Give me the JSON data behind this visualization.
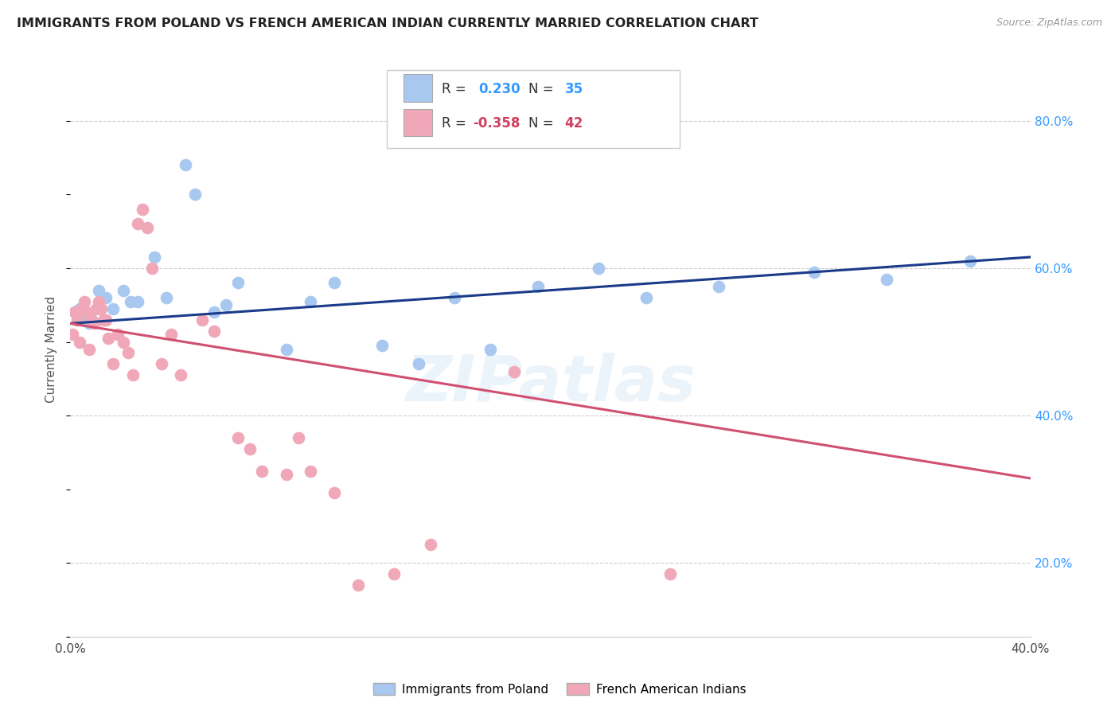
{
  "title": "IMMIGRANTS FROM POLAND VS FRENCH AMERICAN INDIAN CURRENTLY MARRIED CORRELATION CHART",
  "source": "Source: ZipAtlas.com",
  "ylabel": "Currently Married",
  "xlim": [
    0.0,
    0.4
  ],
  "ylim": [
    0.1,
    0.88
  ],
  "xticks": [
    0.0,
    0.05,
    0.1,
    0.15,
    0.2,
    0.25,
    0.3,
    0.35,
    0.4
  ],
  "xtick_labels": [
    "0.0%",
    "",
    "",
    "",
    "",
    "",
    "",
    "",
    "40.0%"
  ],
  "yticks": [
    0.2,
    0.4,
    0.6,
    0.8
  ],
  "ytick_labels": [
    "20.0%",
    "40.0%",
    "60.0%",
    "80.0%"
  ],
  "legend_label_blue": "Immigrants from Poland",
  "legend_label_pink": "French American Indians",
  "R_blue": 0.23,
  "N_blue": 35,
  "R_pink": -0.358,
  "N_pink": 42,
  "blue_color": "#a8c8f0",
  "pink_color": "#f0a8b8",
  "line_blue": "#1a3a8a",
  "line_pink": "#d05070",
  "blue_x": [
    0.002,
    0.003,
    0.004,
    0.005,
    0.006,
    0.007,
    0.008,
    0.009,
    0.012,
    0.015,
    0.018,
    0.022,
    0.025,
    0.028,
    0.035,
    0.04,
    0.048,
    0.052,
    0.06,
    0.065,
    0.07,
    0.09,
    0.1,
    0.11,
    0.13,
    0.145,
    0.16,
    0.175,
    0.195,
    0.22,
    0.24,
    0.27,
    0.31,
    0.34,
    0.375
  ],
  "blue_y": [
    0.54,
    0.54,
    0.545,
    0.53,
    0.54,
    0.535,
    0.525,
    0.53,
    0.57,
    0.56,
    0.545,
    0.57,
    0.555,
    0.555,
    0.615,
    0.56,
    0.74,
    0.7,
    0.54,
    0.55,
    0.58,
    0.49,
    0.555,
    0.58,
    0.495,
    0.47,
    0.56,
    0.49,
    0.575,
    0.6,
    0.56,
    0.575,
    0.595,
    0.585,
    0.61
  ],
  "pink_x": [
    0.001,
    0.002,
    0.003,
    0.004,
    0.005,
    0.006,
    0.007,
    0.008,
    0.009,
    0.01,
    0.011,
    0.012,
    0.013,
    0.014,
    0.015,
    0.016,
    0.018,
    0.02,
    0.022,
    0.024,
    0.026,
    0.028,
    0.03,
    0.032,
    0.034,
    0.038,
    0.042,
    0.046,
    0.055,
    0.06,
    0.07,
    0.075,
    0.08,
    0.09,
    0.095,
    0.1,
    0.11,
    0.12,
    0.135,
    0.15,
    0.185,
    0.25
  ],
  "pink_y": [
    0.51,
    0.54,
    0.53,
    0.5,
    0.545,
    0.555,
    0.54,
    0.49,
    0.53,
    0.525,
    0.545,
    0.555,
    0.545,
    0.53,
    0.53,
    0.505,
    0.47,
    0.51,
    0.5,
    0.485,
    0.455,
    0.66,
    0.68,
    0.655,
    0.6,
    0.47,
    0.51,
    0.455,
    0.53,
    0.515,
    0.37,
    0.355,
    0.325,
    0.32,
    0.37,
    0.325,
    0.295,
    0.17,
    0.185,
    0.225,
    0.46,
    0.185
  ],
  "watermark": "ZIPatlas",
  "background_color": "#ffffff",
  "grid_color": "#cccccc"
}
